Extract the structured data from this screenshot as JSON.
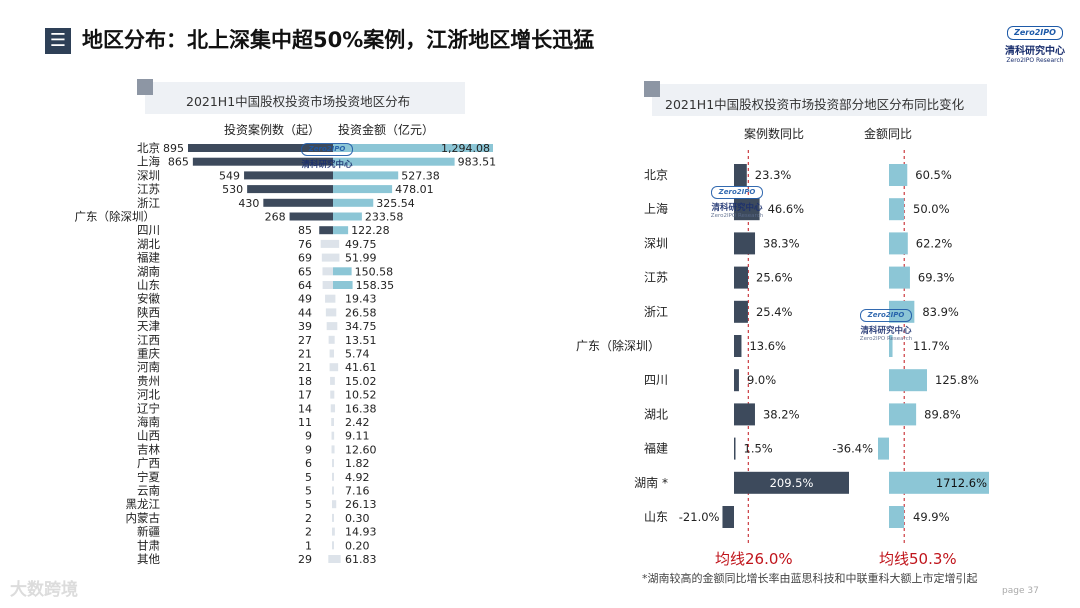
{
  "header": {
    "title": "地区分布：北上深集中超50%案例，江浙地区增长迅猛",
    "menu_glyph": "☰"
  },
  "brand": {
    "logo_text": "Zero2IPO",
    "name_cn": "清科研究中心",
    "name_en": "Zero2IPO Research"
  },
  "watermark": {
    "name_cn": "清科研究中心",
    "logo_text": "Zero2IPO",
    "name_en": "Zero2IPO Research"
  },
  "footer": {
    "logo_text": "大数跨境",
    "page": "page",
    "page_number": "37",
    "footnote": "*湖南较高的金额同比增长率由蓝思科技和中联重科大额上市定增引起"
  },
  "colors": {
    "dark_bar": "#3d4a5c",
    "light_bar": "#8cc6d6",
    "faint_bar": "#dde3ea",
    "avg_line": "#c0141b",
    "title_square": "#2e4057"
  },
  "chart_data": [
    {
      "type": "bar",
      "title": "2021H1中国股权投资市场投资地区分布",
      "orientation": "horizontal-butterfly",
      "categories": [
        "北京",
        "上海",
        "深圳",
        "江苏",
        "浙江",
        "广东（除深圳）",
        "四川",
        "湖北",
        "福建",
        "湖南",
        "山东",
        "安徽",
        "陕西",
        "天津",
        "江西",
        "重庆",
        "河南",
        "贵州",
        "河北",
        "辽宁",
        "海南",
        "山西",
        "吉林",
        "广西",
        "宁夏",
        "云南",
        "黑龙江",
        "内蒙古",
        "新疆",
        "甘肃",
        "其他"
      ],
      "series": [
        {
          "name": "投资案例数（起）",
          "values": [
            895,
            865,
            549,
            530,
            430,
            268,
            85,
            76,
            69,
            65,
            64,
            49,
            44,
            39,
            27,
            21,
            21,
            18,
            17,
            14,
            11,
            9,
            9,
            6,
            5,
            5,
            5,
            2,
            2,
            1,
            29
          ]
        },
        {
          "name": "投资金额（亿元）",
          "values": [
            1294.08,
            983.51,
            527.38,
            478.01,
            325.54,
            233.58,
            122.28,
            49.75,
            51.99,
            150.58,
            158.35,
            19.43,
            26.58,
            34.75,
            13.51,
            5.74,
            41.61,
            15.02,
            10.52,
            16.38,
            2.42,
            9.11,
            12.6,
            1.82,
            4.92,
            7.16,
            26.13,
            0.3,
            14.93,
            0.2,
            61.83
          ]
        }
      ],
      "value_labels": {
        "count": [
          "895",
          "865",
          "549",
          "530",
          "430",
          "268",
          "85",
          "76",
          "69",
          "65",
          "64",
          "49",
          "44",
          "39",
          "27",
          "21",
          "21",
          "18",
          "17",
          "14",
          "11",
          "9",
          "9",
          "6",
          "5",
          "5",
          "5",
          "2",
          "2",
          "1",
          "29"
        ],
        "amount": [
          "1,294.08",
          "983.51",
          "527.38",
          "478.01",
          "325.54",
          "233.58",
          "122.28",
          "49.75",
          "51.99",
          "150.58",
          "158.35",
          "19.43",
          "26.58",
          "34.75",
          "13.51",
          "5.74",
          "41.61",
          "15.02",
          "10.52",
          "16.38",
          "2.42",
          "9.11",
          "12.60",
          "1.82",
          "4.92",
          "7.16",
          "26.13",
          "0.30",
          "14.93",
          "0.20",
          "61.83"
        ]
      }
    },
    {
      "type": "bar",
      "title": "2021H1中国股权投资市场投资部分地区分布同比变化",
      "orientation": "horizontal",
      "categories": [
        "北京",
        "上海",
        "深圳",
        "江苏",
        "浙江",
        "广东（除深圳）",
        "四川",
        "湖北",
        "福建",
        "湖南 *",
        "山东"
      ],
      "series": [
        {
          "name": "案例数同比",
          "unit": "%",
          "values": [
            23.3,
            46.6,
            38.3,
            25.6,
            25.4,
            13.6,
            9.0,
            38.2,
            1.5,
            209.5,
            -21.0
          ],
          "labels": [
            "23.3%",
            "46.6%",
            "38.3%",
            "25.6%",
            "25.4%",
            "13.6%",
            "9.0%",
            "38.2%",
            "1.5%",
            "209.5%",
            "-21.0%"
          ],
          "average": 26.0,
          "average_label": "均线26.0%"
        },
        {
          "name": "金额同比",
          "unit": "%",
          "values": [
            60.5,
            50.0,
            62.2,
            69.3,
            83.9,
            11.7,
            125.8,
            89.8,
            -36.4,
            1712.6,
            49.9
          ],
          "labels": [
            "60.5%",
            "50.0%",
            "62.2%",
            "69.3%",
            "83.9%",
            "11.7%",
            "125.8%",
            "89.8%",
            "-36.4%",
            "1712.6%",
            "49.9%"
          ],
          "average": 50.3,
          "average_label": "均线50.3%"
        }
      ]
    }
  ]
}
